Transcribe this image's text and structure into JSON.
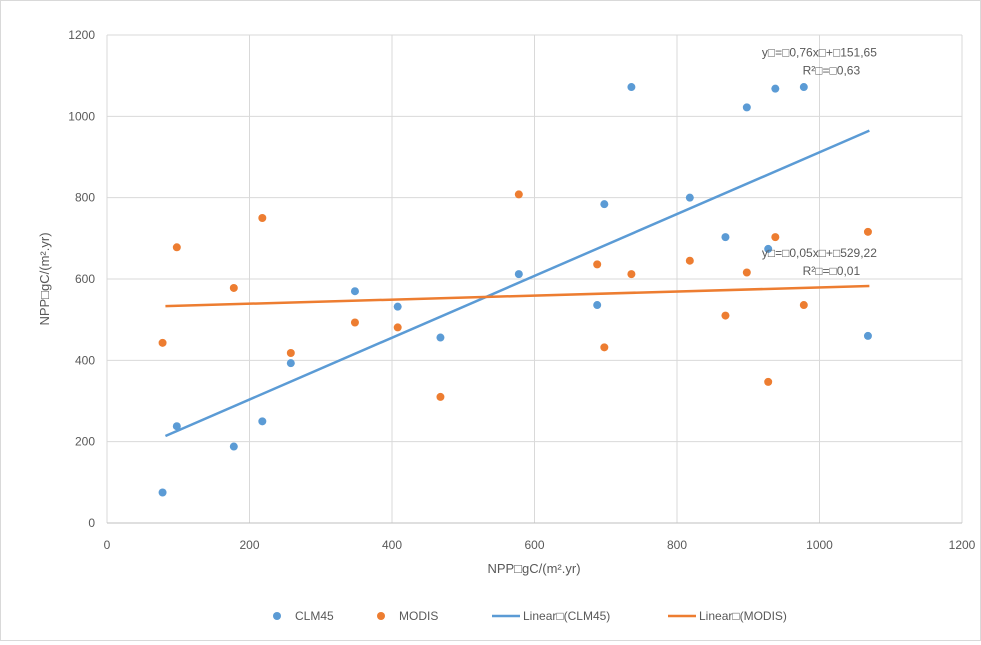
{
  "chart_data": {
    "type": "scatter",
    "title": "",
    "xlabel": "NPP□gC/(m².yr)",
    "ylabel": "NPP□gC/(m².yr)",
    "xlim": [
      0,
      1200
    ],
    "ylim": [
      0,
      1200
    ],
    "xticks": [
      0,
      200,
      400,
      600,
      800,
      1000,
      1200
    ],
    "yticks": [
      0,
      200,
      400,
      600,
      800,
      1000,
      1200
    ],
    "grid": "horizontal",
    "legend_position": "bottom",
    "series": [
      {
        "name": "CLM45",
        "kind": "scatter",
        "color": "#5b9bd5",
        "points": [
          [
            78,
            75
          ],
          [
            98,
            238
          ],
          [
            178,
            188
          ],
          [
            218,
            250
          ],
          [
            258,
            393
          ],
          [
            348,
            570
          ],
          [
            408,
            532
          ],
          [
            468,
            456
          ],
          [
            578,
            612
          ],
          [
            688,
            536
          ],
          [
            698,
            784
          ],
          [
            736,
            1072
          ],
          [
            818,
            800
          ],
          [
            868,
            703
          ],
          [
            898,
            1022
          ],
          [
            928,
            674
          ],
          [
            938,
            1068
          ],
          [
            978,
            1072
          ],
          [
            1068,
            460
          ]
        ]
      },
      {
        "name": "MODIS",
        "kind": "scatter",
        "color": "#ed7d31",
        "points": [
          [
            78,
            443
          ],
          [
            98,
            678
          ],
          [
            178,
            578
          ],
          [
            218,
            750
          ],
          [
            258,
            418
          ],
          [
            348,
            493
          ],
          [
            408,
            481
          ],
          [
            468,
            310
          ],
          [
            578,
            808
          ],
          [
            688,
            636
          ],
          [
            698,
            432
          ],
          [
            736,
            612
          ],
          [
            818,
            645
          ],
          [
            868,
            510
          ],
          [
            898,
            616
          ],
          [
            928,
            347
          ],
          [
            938,
            703
          ],
          [
            978,
            536
          ],
          [
            1068,
            716
          ]
        ]
      },
      {
        "name": "Linear□(CLM45)",
        "kind": "trendline",
        "color": "#5b9bd5",
        "x_range": [
          82,
          1070
        ],
        "slope": 0.76,
        "intercept": 151.65,
        "equation": "y□=□0,76x□+□151,65",
        "r2": "R²□=□0,63"
      },
      {
        "name": "Linear□(MODIS)",
        "kind": "trendline",
        "color": "#ed7d31",
        "x_range": [
          82,
          1070
        ],
        "slope": 0.05,
        "intercept": 529.22,
        "equation": "y□=□0,05x□+□529,22",
        "r2": "R²□=□0,01"
      }
    ]
  }
}
